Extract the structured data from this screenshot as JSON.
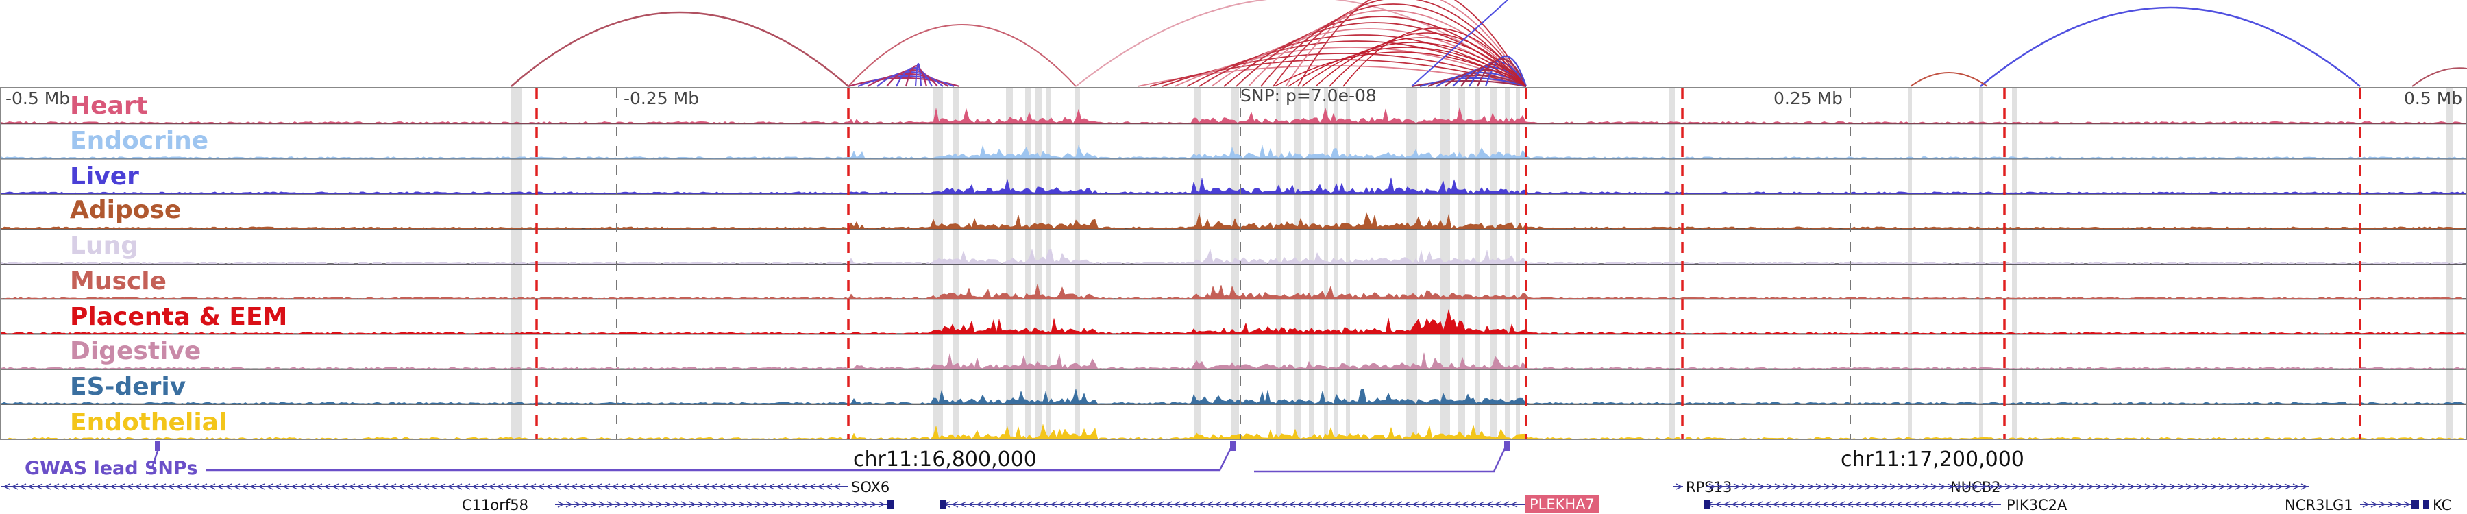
{
  "colors": {
    "arc_red": "#b03030",
    "arc_pink": "#d88a9a",
    "arc_blue": "#4f4fd6",
    "highlight": "#dcdcdc",
    "boundary": "#e02020",
    "gwas": "#6a4fc8",
    "gene": "#3a3aa0"
  },
  "axis": {
    "left": "-0.5 Mb",
    "quarter_left": "-0.25 Mb",
    "snp": "SNP: p=7.0e-08",
    "quarter_right": "0.25 Mb",
    "right": "0.5 Mb"
  },
  "coordinates": {
    "left": "chr11:16,800,000",
    "right": "chr11:17,200,000"
  },
  "gwas_label": "GWAS lead SNPs",
  "tracks": [
    {
      "name": "Heart",
      "color": "#d9587a"
    },
    {
      "name": "Endocrine",
      "color": "#9ec5f0"
    },
    {
      "name": "Liver",
      "color": "#4a3fd6"
    },
    {
      "name": "Adipose",
      "color": "#b0582f"
    },
    {
      "name": "Lung",
      "color": "#d8cfe6"
    },
    {
      "name": "Muscle",
      "color": "#c46057"
    },
    {
      "name": "Placenta & EEM",
      "color": "#d90f16"
    },
    {
      "name": "Digestive",
      "color": "#c98aa8"
    },
    {
      "name": "ES-deriv",
      "color": "#3a6fa0"
    },
    {
      "name": "Endothelial",
      "color": "#f3c51a"
    }
  ],
  "genes": {
    "sox6": "SOX6",
    "c11orf58": "C11orf58",
    "plekha7": "PLEKHA7",
    "rps13": "RPS13",
    "nucb2": "NUCB2",
    "pik3c2a": "PIK3C2A",
    "ncr3lg1": "NCR3LG1",
    "kcnj11_partial": "KC"
  },
  "plekha7_color": "#e0607a"
}
